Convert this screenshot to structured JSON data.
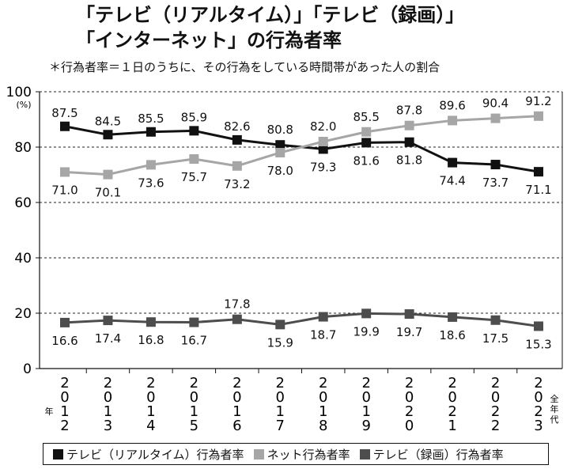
{
  "header": {
    "title_line1": "「テレビ（リアルタイム）」「テレビ（録画）」",
    "title_line2": "「インターネット」の行為者率",
    "note": "＊行為者率＝１日のうちに、その行為をしている時間帯があった人の割合"
  },
  "colors": {
    "realtime": "#111111",
    "net": "#a6a6a6",
    "recorded": "#4d4d4d"
  },
  "chart_data": {
    "type": "line",
    "title": "「テレビ（リアルタイム）」「テレビ（録画）」「インターネット」の行為者率",
    "ylabel": "(%)",
    "xlabel": "",
    "ylim": [
      0,
      100
    ],
    "yticks": [
      0,
      20,
      40,
      60,
      80,
      100
    ],
    "grid": "horizontal dashed",
    "year_marker": "年",
    "last_category_note": "全年代",
    "categories": [
      "2012",
      "2013",
      "2014",
      "2015",
      "2016",
      "2017",
      "2018",
      "2019",
      "2020",
      "2021",
      "2022",
      "2023"
    ],
    "series": [
      {
        "name": "テレビ（リアルタイム）行為者率",
        "key": "realtime",
        "values": [
          87.5,
          84.5,
          85.5,
          85.9,
          82.6,
          80.8,
          79.3,
          81.6,
          81.8,
          74.4,
          73.7,
          71.1
        ]
      },
      {
        "name": "ネット行為者率",
        "key": "net",
        "values": [
          71.0,
          70.1,
          73.6,
          75.7,
          73.2,
          78.0,
          82.0,
          85.5,
          87.8,
          89.6,
          90.4,
          91.2
        ]
      },
      {
        "name": "テレビ（録画）行為者率",
        "key": "recorded",
        "values": [
          16.6,
          17.4,
          16.8,
          16.7,
          17.8,
          15.9,
          18.7,
          19.9,
          19.7,
          18.6,
          17.5,
          15.3
        ]
      }
    ],
    "legend_position": "bottom"
  }
}
